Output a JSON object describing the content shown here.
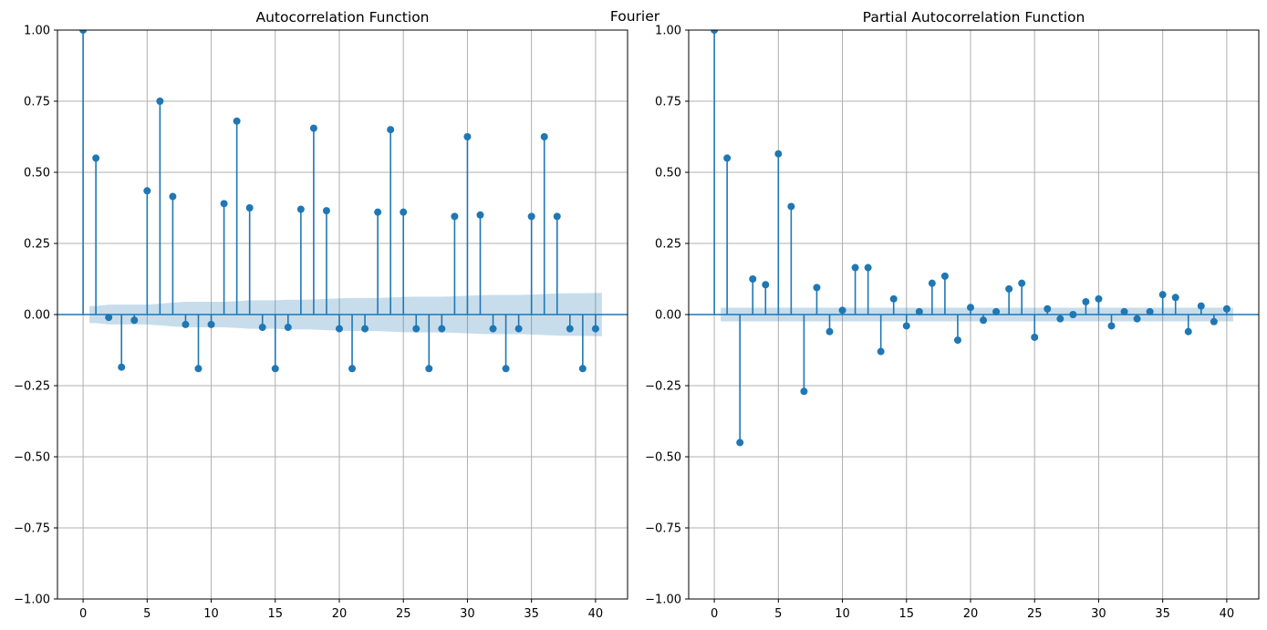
{
  "figure": {
    "suptitle": "Fourier"
  },
  "colors": {
    "stem": "#1f77b4",
    "band": "#1f77b4",
    "grid": "#b0b0b0",
    "axis": "#000000"
  },
  "chart_data": [
    {
      "type": "stem",
      "title": "Autocorrelation Function",
      "xlabel": "",
      "ylabel": "",
      "xlim": [
        -2,
        42.5
      ],
      "ylim": [
        -1.0,
        1.0
      ],
      "xticks": [
        0,
        5,
        10,
        15,
        20,
        25,
        30,
        35,
        40
      ],
      "yticks": [
        -1.0,
        -0.75,
        -0.5,
        -0.25,
        0.0,
        0.25,
        0.5,
        0.75,
        1.0
      ],
      "ytick_labels": [
        "−1.00",
        "−0.75",
        "−0.50",
        "−0.25",
        "0.00",
        "0.25",
        "0.50",
        "0.75",
        "1.00"
      ],
      "xtick_labels": [
        "0",
        "5",
        "10",
        "15",
        "20",
        "25",
        "30",
        "35",
        "40"
      ],
      "grid": true,
      "x": [
        0,
        1,
        2,
        3,
        4,
        5,
        6,
        7,
        8,
        9,
        10,
        11,
        12,
        13,
        14,
        15,
        16,
        17,
        18,
        19,
        20,
        21,
        22,
        23,
        24,
        25,
        26,
        27,
        28,
        29,
        30,
        31,
        32,
        33,
        34,
        35,
        36,
        37,
        38,
        39,
        40
      ],
      "values": [
        1.0,
        0.55,
        -0.01,
        -0.185,
        -0.02,
        0.435,
        0.75,
        0.415,
        -0.035,
        -0.19,
        -0.035,
        0.39,
        0.68,
        0.375,
        -0.045,
        -0.19,
        -0.045,
        0.37,
        0.655,
        0.365,
        -0.05,
        -0.19,
        -0.05,
        0.36,
        0.65,
        0.36,
        -0.05,
        -0.19,
        -0.05,
        0.345,
        0.625,
        0.35,
        -0.05,
        -0.19,
        -0.05,
        0.345,
        0.625,
        0.345,
        -0.05,
        -0.19,
        -0.05
      ],
      "confidence_band": {
        "x": [
          0.5,
          1,
          2,
          3,
          4,
          5,
          6,
          7,
          8,
          9,
          10,
          11,
          12,
          13,
          14,
          15,
          16,
          17,
          18,
          19,
          20,
          21,
          22,
          23,
          24,
          25,
          26,
          27,
          28,
          29,
          30,
          31,
          32,
          33,
          34,
          35,
          36,
          37,
          38,
          39,
          40.5
        ],
        "upper": [
          0.03,
          0.03,
          0.035,
          0.035,
          0.035,
          0.035,
          0.038,
          0.042,
          0.045,
          0.045,
          0.045,
          0.045,
          0.047,
          0.05,
          0.05,
          0.05,
          0.052,
          0.052,
          0.053,
          0.055,
          0.057,
          0.058,
          0.058,
          0.058,
          0.06,
          0.062,
          0.063,
          0.063,
          0.063,
          0.064,
          0.066,
          0.068,
          0.069,
          0.069,
          0.069,
          0.07,
          0.072,
          0.074,
          0.075,
          0.075,
          0.076
        ],
        "lower": [
          -0.03,
          -0.03,
          -0.035,
          -0.035,
          -0.035,
          -0.035,
          -0.038,
          -0.042,
          -0.045,
          -0.045,
          -0.045,
          -0.045,
          -0.047,
          -0.05,
          -0.05,
          -0.05,
          -0.052,
          -0.052,
          -0.053,
          -0.055,
          -0.057,
          -0.058,
          -0.058,
          -0.058,
          -0.06,
          -0.062,
          -0.063,
          -0.063,
          -0.063,
          -0.064,
          -0.066,
          -0.068,
          -0.069,
          -0.069,
          -0.069,
          -0.07,
          -0.072,
          -0.074,
          -0.075,
          -0.075,
          -0.076
        ]
      }
    },
    {
      "type": "stem",
      "title": "Partial Autocorrelation Function",
      "xlabel": "",
      "ylabel": "",
      "xlim": [
        -2,
        42.5
      ],
      "ylim": [
        -1.0,
        1.0
      ],
      "xticks": [
        0,
        5,
        10,
        15,
        20,
        25,
        30,
        35,
        40
      ],
      "yticks": [
        -1.0,
        -0.75,
        -0.5,
        -0.25,
        0.0,
        0.25,
        0.5,
        0.75,
        1.0
      ],
      "ytick_labels": [
        "−1.00",
        "−0.75",
        "−0.50",
        "−0.25",
        "0.00",
        "0.25",
        "0.50",
        "0.75",
        "1.00"
      ],
      "xtick_labels": [
        "0",
        "5",
        "10",
        "15",
        "20",
        "25",
        "30",
        "35",
        "40"
      ],
      "grid": true,
      "x": [
        0,
        1,
        2,
        3,
        4,
        5,
        6,
        7,
        8,
        9,
        10,
        11,
        12,
        13,
        14,
        15,
        16,
        17,
        18,
        19,
        20,
        21,
        22,
        23,
        24,
        25,
        26,
        27,
        28,
        29,
        30,
        31,
        32,
        33,
        34,
        35,
        36,
        37,
        38,
        39,
        40
      ],
      "values": [
        1.0,
        0.55,
        -0.45,
        0.125,
        0.105,
        0.565,
        0.38,
        -0.27,
        0.095,
        -0.06,
        0.015,
        0.165,
        0.165,
        -0.13,
        0.055,
        -0.04,
        0.01,
        0.11,
        0.135,
        -0.09,
        0.025,
        -0.02,
        0.01,
        0.09,
        0.11,
        -0.08,
        0.02,
        -0.015,
        0.0,
        0.045,
        0.055,
        -0.04,
        0.01,
        -0.015,
        0.01,
        0.07,
        0.06,
        -0.06,
        0.03,
        -0.025,
        0.02
      ],
      "confidence_band": {
        "x": [
          0.5,
          40.5
        ],
        "upper": [
          0.024,
          0.024
        ],
        "lower": [
          -0.024,
          -0.024
        ]
      }
    }
  ]
}
